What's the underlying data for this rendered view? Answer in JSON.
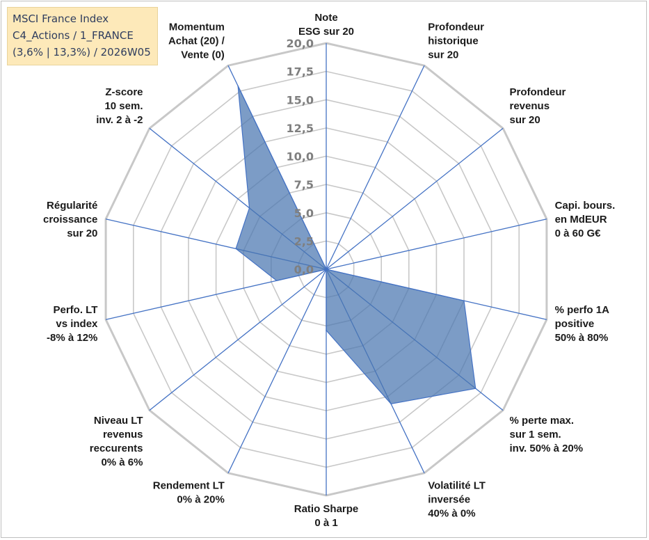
{
  "info_box": {
    "line1": "MSCI France Index",
    "line2": "C4_Actions / 1_FRANCE",
    "line3": "(3,6% | 13,3%) / 2026W05"
  },
  "colors": {
    "grid": "#c8c8c8",
    "axis": "#4472c4",
    "fill": "#4a76b0",
    "text": "#1a1a1a"
  },
  "chart_data": {
    "type": "radar",
    "title": "",
    "rlim": [
      0,
      20
    ],
    "ticks": [
      "0,0",
      "2,5",
      "5,0",
      "7,5",
      "10,0",
      "12,5",
      "15,0",
      "17,5",
      "20,0"
    ],
    "grid": true,
    "axes": [
      {
        "label": [
          "Note",
          "ESG sur 20"
        ]
      },
      {
        "label": [
          "Profondeur",
          "historique",
          "sur 20"
        ]
      },
      {
        "label": [
          "Profondeur",
          "revenus",
          "sur 20"
        ]
      },
      {
        "label": [
          "Capi. bours.",
          "en MdEUR",
          "0 à 60 G€"
        ]
      },
      {
        "label": [
          "% perfo 1A",
          "positive",
          "50% à 80%"
        ]
      },
      {
        "label": [
          "% perte max.",
          "sur 1 sem.",
          "inv. 50% à 20%"
        ]
      },
      {
        "label": [
          "Volatilité LT",
          "inversée",
          "40% à 0%"
        ]
      },
      {
        "label": [
          "Ratio Sharpe",
          "0 à 1"
        ]
      },
      {
        "label": [
          "Rendement LT",
          "0% à 20%"
        ]
      },
      {
        "label": [
          "Niveau LT",
          "revenus",
          "reccurents",
          "0% à 6%"
        ]
      },
      {
        "label": [
          "Perfo. LT",
          "vs index",
          "-8% à 12%"
        ]
      },
      {
        "label": [
          "Régularité",
          "croissance",
          "sur 20"
        ]
      },
      {
        "label": [
          "Z-score",
          "10 sem.",
          "inv. 2 à -2"
        ]
      },
      {
        "label": [
          "Momentum",
          "Achat (20) /",
          "Vente (0)"
        ]
      }
    ],
    "series": [
      {
        "values": [
          0,
          0,
          0,
          0,
          12.5,
          16.9,
          13.2,
          5.4,
          0,
          0,
          4.5,
          8.2,
          8.7,
          18.0
        ]
      }
    ]
  }
}
